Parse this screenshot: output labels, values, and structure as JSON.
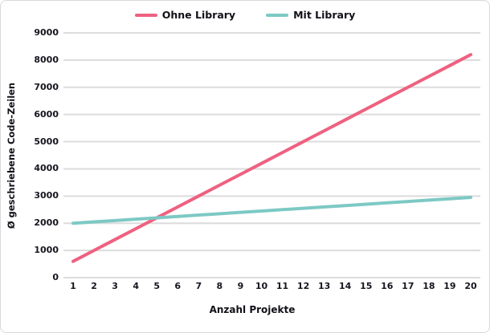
{
  "legend": {
    "items": [
      {
        "label": "Ohne Library",
        "color": "#ee6180"
      },
      {
        "label": "Mit Library",
        "color": "#7dc9c4"
      }
    ]
  },
  "chart_data": {
    "type": "line",
    "title": "",
    "x": [
      1,
      2,
      3,
      4,
      5,
      6,
      7,
      8,
      9,
      10,
      11,
      12,
      13,
      14,
      15,
      16,
      17,
      18,
      19,
      20
    ],
    "series": [
      {
        "name": "Ohne Library",
        "color": "#ee6180",
        "values": [
          600,
          1000,
          1400,
          1800,
          2200,
          2600,
          3000,
          3400,
          3800,
          4200,
          4600,
          5000,
          5400,
          5800,
          6200,
          6600,
          7000,
          7400,
          7800,
          8200
        ]
      },
      {
        "name": "Mit Library",
        "color": "#7dc9c4",
        "values": [
          2000,
          2050,
          2100,
          2150,
          2200,
          2250,
          2300,
          2350,
          2400,
          2450,
          2500,
          2550,
          2600,
          2650,
          2700,
          2750,
          2800,
          2850,
          2900,
          2950
        ]
      }
    ],
    "xlabel": "Anzahl Projekte",
    "ylabel": "Ø geschriebene Code-Zeilen",
    "ylim": [
      0,
      9000
    ],
    "y_ticks": [
      0,
      1000,
      2000,
      3000,
      4000,
      5000,
      6000,
      7000,
      8000,
      9000
    ],
    "grid": "horizontal",
    "gridline_color": "#dcdcdc",
    "legend_position": "top"
  }
}
